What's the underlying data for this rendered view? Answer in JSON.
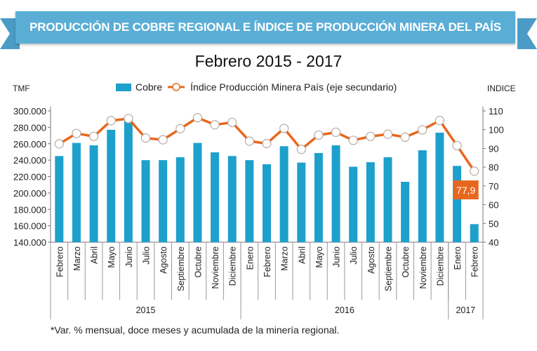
{
  "chart_data": {
    "type": "bar+line",
    "title": "PRODUCCIÓN DE COBRE REGIONAL E ÍNDICE DE PRODUCCIÓN MINERA DEL PAÍS",
    "subtitle": "Febrero  2015 - 2017",
    "ylabel": "TMF",
    "y2label": "INDICE",
    "ylim": [
      140000,
      300000
    ],
    "y_ticks": [
      "140.000",
      "160.000",
      "180.000",
      "200.000",
      "220.000",
      "240.000",
      "260.000",
      "280.000",
      "300.000"
    ],
    "y2lim": [
      40,
      110
    ],
    "y2_ticks": [
      "40",
      "50",
      "60",
      "70",
      "80",
      "90",
      "100",
      "110"
    ],
    "categories": [
      "Febrero",
      "Marzo",
      "Abril",
      "Mayo",
      "Junio",
      "Julio",
      "Agosto",
      "Septiembre",
      "Octubre",
      "Noviembre",
      "Diciembre",
      "Enero",
      "Febrero",
      "Marzo",
      "Abril",
      "Mayo",
      "Junio",
      "Julio",
      "Agosto",
      "Septiembre",
      "Octubre",
      "Noviembre",
      "Diciembre",
      "Enero",
      "Febrero"
    ],
    "years": [
      {
        "label": "2015",
        "count": 11
      },
      {
        "label": "2016",
        "count": 12
      },
      {
        "label": "2017",
        "count": 2
      }
    ],
    "series": [
      {
        "name": "Cobre",
        "type": "bar",
        "axis": "left",
        "color": "#1ea0cc",
        "values": [
          245000,
          261000,
          258000,
          277000,
          288000,
          240000,
          240000,
          243500,
          261000,
          249500,
          245000,
          240000,
          235000,
          257000,
          237000,
          248700,
          258000,
          232000,
          237500,
          243500,
          213600,
          252000,
          273500,
          233000,
          162000
        ]
      },
      {
        "name": "Índice Producción Minera País (eje secundario)",
        "type": "line",
        "axis": "right",
        "color": "#e8671e",
        "values": [
          92.4,
          98,
          96.4,
          104.8,
          105.9,
          95.5,
          94.6,
          100.5,
          106.4,
          102.6,
          103.9,
          93.9,
          92.6,
          100.7,
          89.5,
          97.1,
          98.6,
          94.3,
          96.4,
          97.6,
          96,
          99.9,
          104.9,
          91.5,
          77.9
        ]
      }
    ],
    "annotation": {
      "label": "77,9",
      "color": "#e8671e"
    },
    "grid": false,
    "legend": "top",
    "footnote": "*Var. % mensual, doce meses y acumulada de la minería regional."
  }
}
